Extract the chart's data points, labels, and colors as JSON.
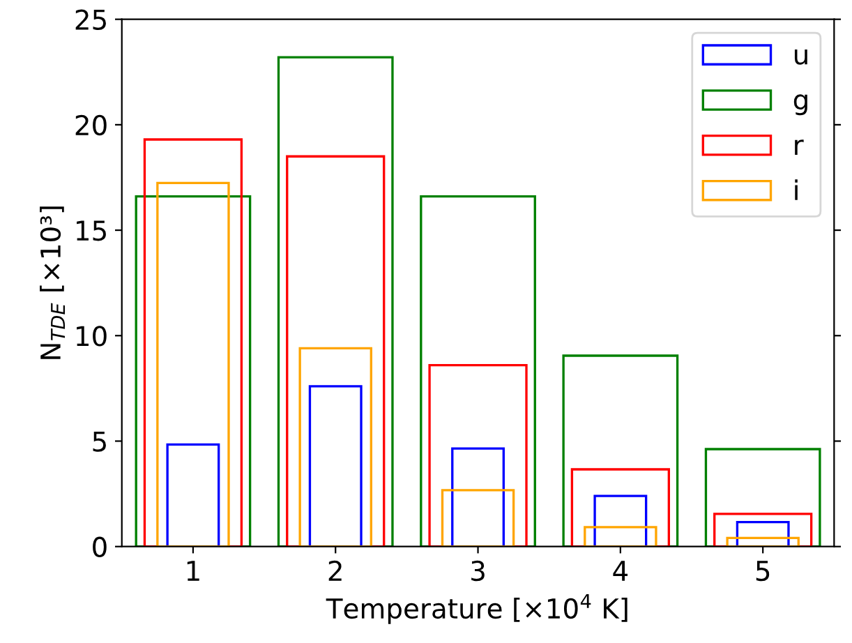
{
  "chart_data": {
    "type": "bar",
    "xlabel": "Temperature [×10$^{4}$ K]",
    "ylabel": "N$_{TDE}$ [×10³]",
    "x": [
      1,
      2,
      3,
      4,
      5
    ],
    "series": [
      {
        "name": "u",
        "color": "#0000ff",
        "values": [
          4.84,
          7.6,
          4.65,
          2.4,
          1.16
        ]
      },
      {
        "name": "g",
        "color": "#008000",
        "values": [
          16.6,
          23.2,
          16.6,
          9.05,
          4.62
        ]
      },
      {
        "name": "r",
        "color": "#ff0000",
        "values": [
          19.3,
          18.5,
          8.6,
          3.66,
          1.55
        ]
      },
      {
        "name": "i",
        "color": "#ffa500",
        "values": [
          17.24,
          9.4,
          2.67,
          0.92,
          0.41
        ]
      }
    ],
    "xlim": [
      0.5,
      5.5
    ],
    "ylim": [
      0,
      25
    ],
    "xticks": [
      1,
      2,
      3,
      4,
      5
    ],
    "yticks": [
      0,
      5,
      10,
      15,
      20,
      25
    ],
    "legend": "top right",
    "grid": false
  }
}
